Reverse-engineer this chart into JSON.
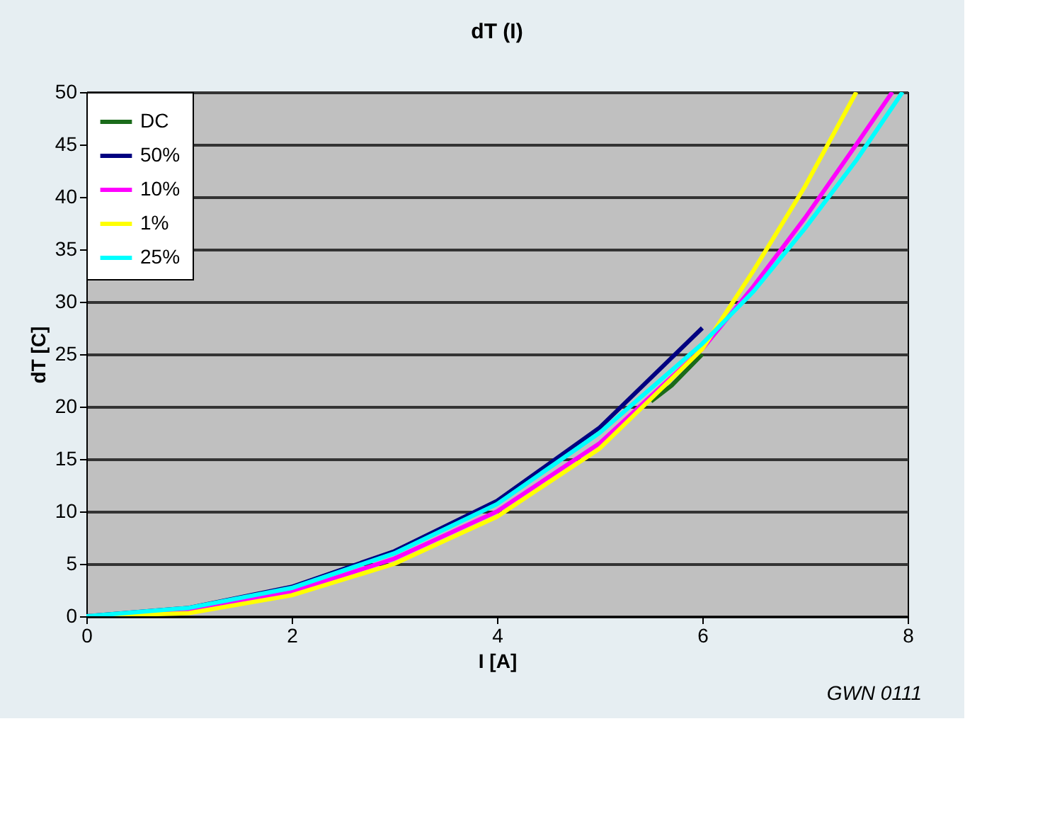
{
  "chart_data": {
    "type": "line",
    "title": "dT (I)",
    "xlabel": "I [A]",
    "ylabel": "dT [C]",
    "annotations": [
      "GWN 0111"
    ],
    "xlim": [
      0,
      8
    ],
    "xticks": [
      0,
      2,
      4,
      6,
      8
    ],
    "ylim": [
      0,
      50
    ],
    "yticks": [
      0,
      5,
      10,
      15,
      20,
      25,
      30,
      35,
      40,
      45,
      50
    ],
    "grid": "y",
    "legend": "top left",
    "marker": "none",
    "line_style": "solid",
    "series": [
      {
        "name": "DC",
        "color": "#1a6b1a",
        "x": [
          5.5,
          5.7,
          6
        ],
        "values": [
          20.5,
          22,
          25
        ]
      },
      {
        "name": "50%",
        "color": "#000080",
        "x": [
          0,
          1,
          2,
          3,
          4,
          5,
          6
        ],
        "values": [
          0,
          0.8,
          2.8,
          6.2,
          11,
          18,
          27.5
        ]
      },
      {
        "name": "10%",
        "color": "#ff00ff",
        "x": [
          0,
          1,
          2,
          3,
          4,
          5,
          6,
          6.5,
          7,
          7.5,
          7.85
        ],
        "values": [
          0,
          0.6,
          2.3,
          5.5,
          10,
          16.5,
          25.5,
          31.5,
          38,
          45,
          50
        ]
      },
      {
        "name": "1%",
        "color": "#ffff00",
        "x": [
          0,
          1,
          2,
          3,
          4,
          5,
          6,
          6.5,
          7,
          7.5
        ],
        "values": [
          0,
          0.3,
          2,
          5,
          9.5,
          16,
          25.5,
          33,
          41,
          50
        ]
      },
      {
        "name": "25%",
        "color": "#00ffff",
        "x": [
          0,
          1,
          2,
          3,
          4,
          5,
          6,
          6.5,
          7,
          7.5,
          7.95
        ],
        "values": [
          0,
          0.8,
          2.7,
          6,
          10.7,
          17.5,
          26,
          31,
          37,
          43.5,
          50
        ]
      }
    ]
  }
}
